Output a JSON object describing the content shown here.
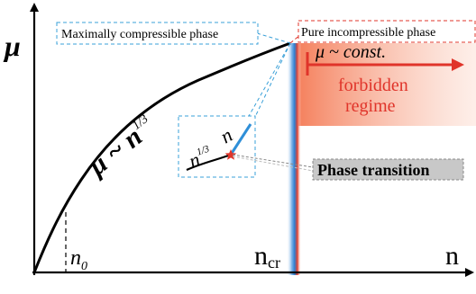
{
  "labels": {
    "y_axis": "μ",
    "x_axis": "n",
    "compressible_phase": "Maximally compressible phase",
    "incompressible_phase": "Pure incompressible  phase",
    "curve_law_mu": "μ ~ n",
    "curve_law_exp": "1/3",
    "n0_base": "n",
    "n0_sub": "0",
    "ncr_base": "n",
    "ncr_sub": "cr",
    "mu_const": "μ ~ const.",
    "forbidden_1": "forbidden",
    "forbidden_2": "regime",
    "inset_n13_base": "n",
    "inset_n13_exp": "1/3",
    "inset_n": "n",
    "phase_transition": "Phase transition"
  },
  "colors": {
    "curve": "#000000",
    "dashed_box": "#3aa0d8",
    "red_box": "#e0342a",
    "forbidden_text": "#e0342a",
    "forbidden_fill": "#f4845f",
    "wall_blue": "#4a90d9",
    "wall_red": "#e8412c",
    "inset_blue_line": "#2f8fd8",
    "star": "#e0342a",
    "transition_box": "#c8c8c8"
  },
  "icons": {
    "transition_marker": "star-icon",
    "axis_arrow": "arrow-icon"
  }
}
